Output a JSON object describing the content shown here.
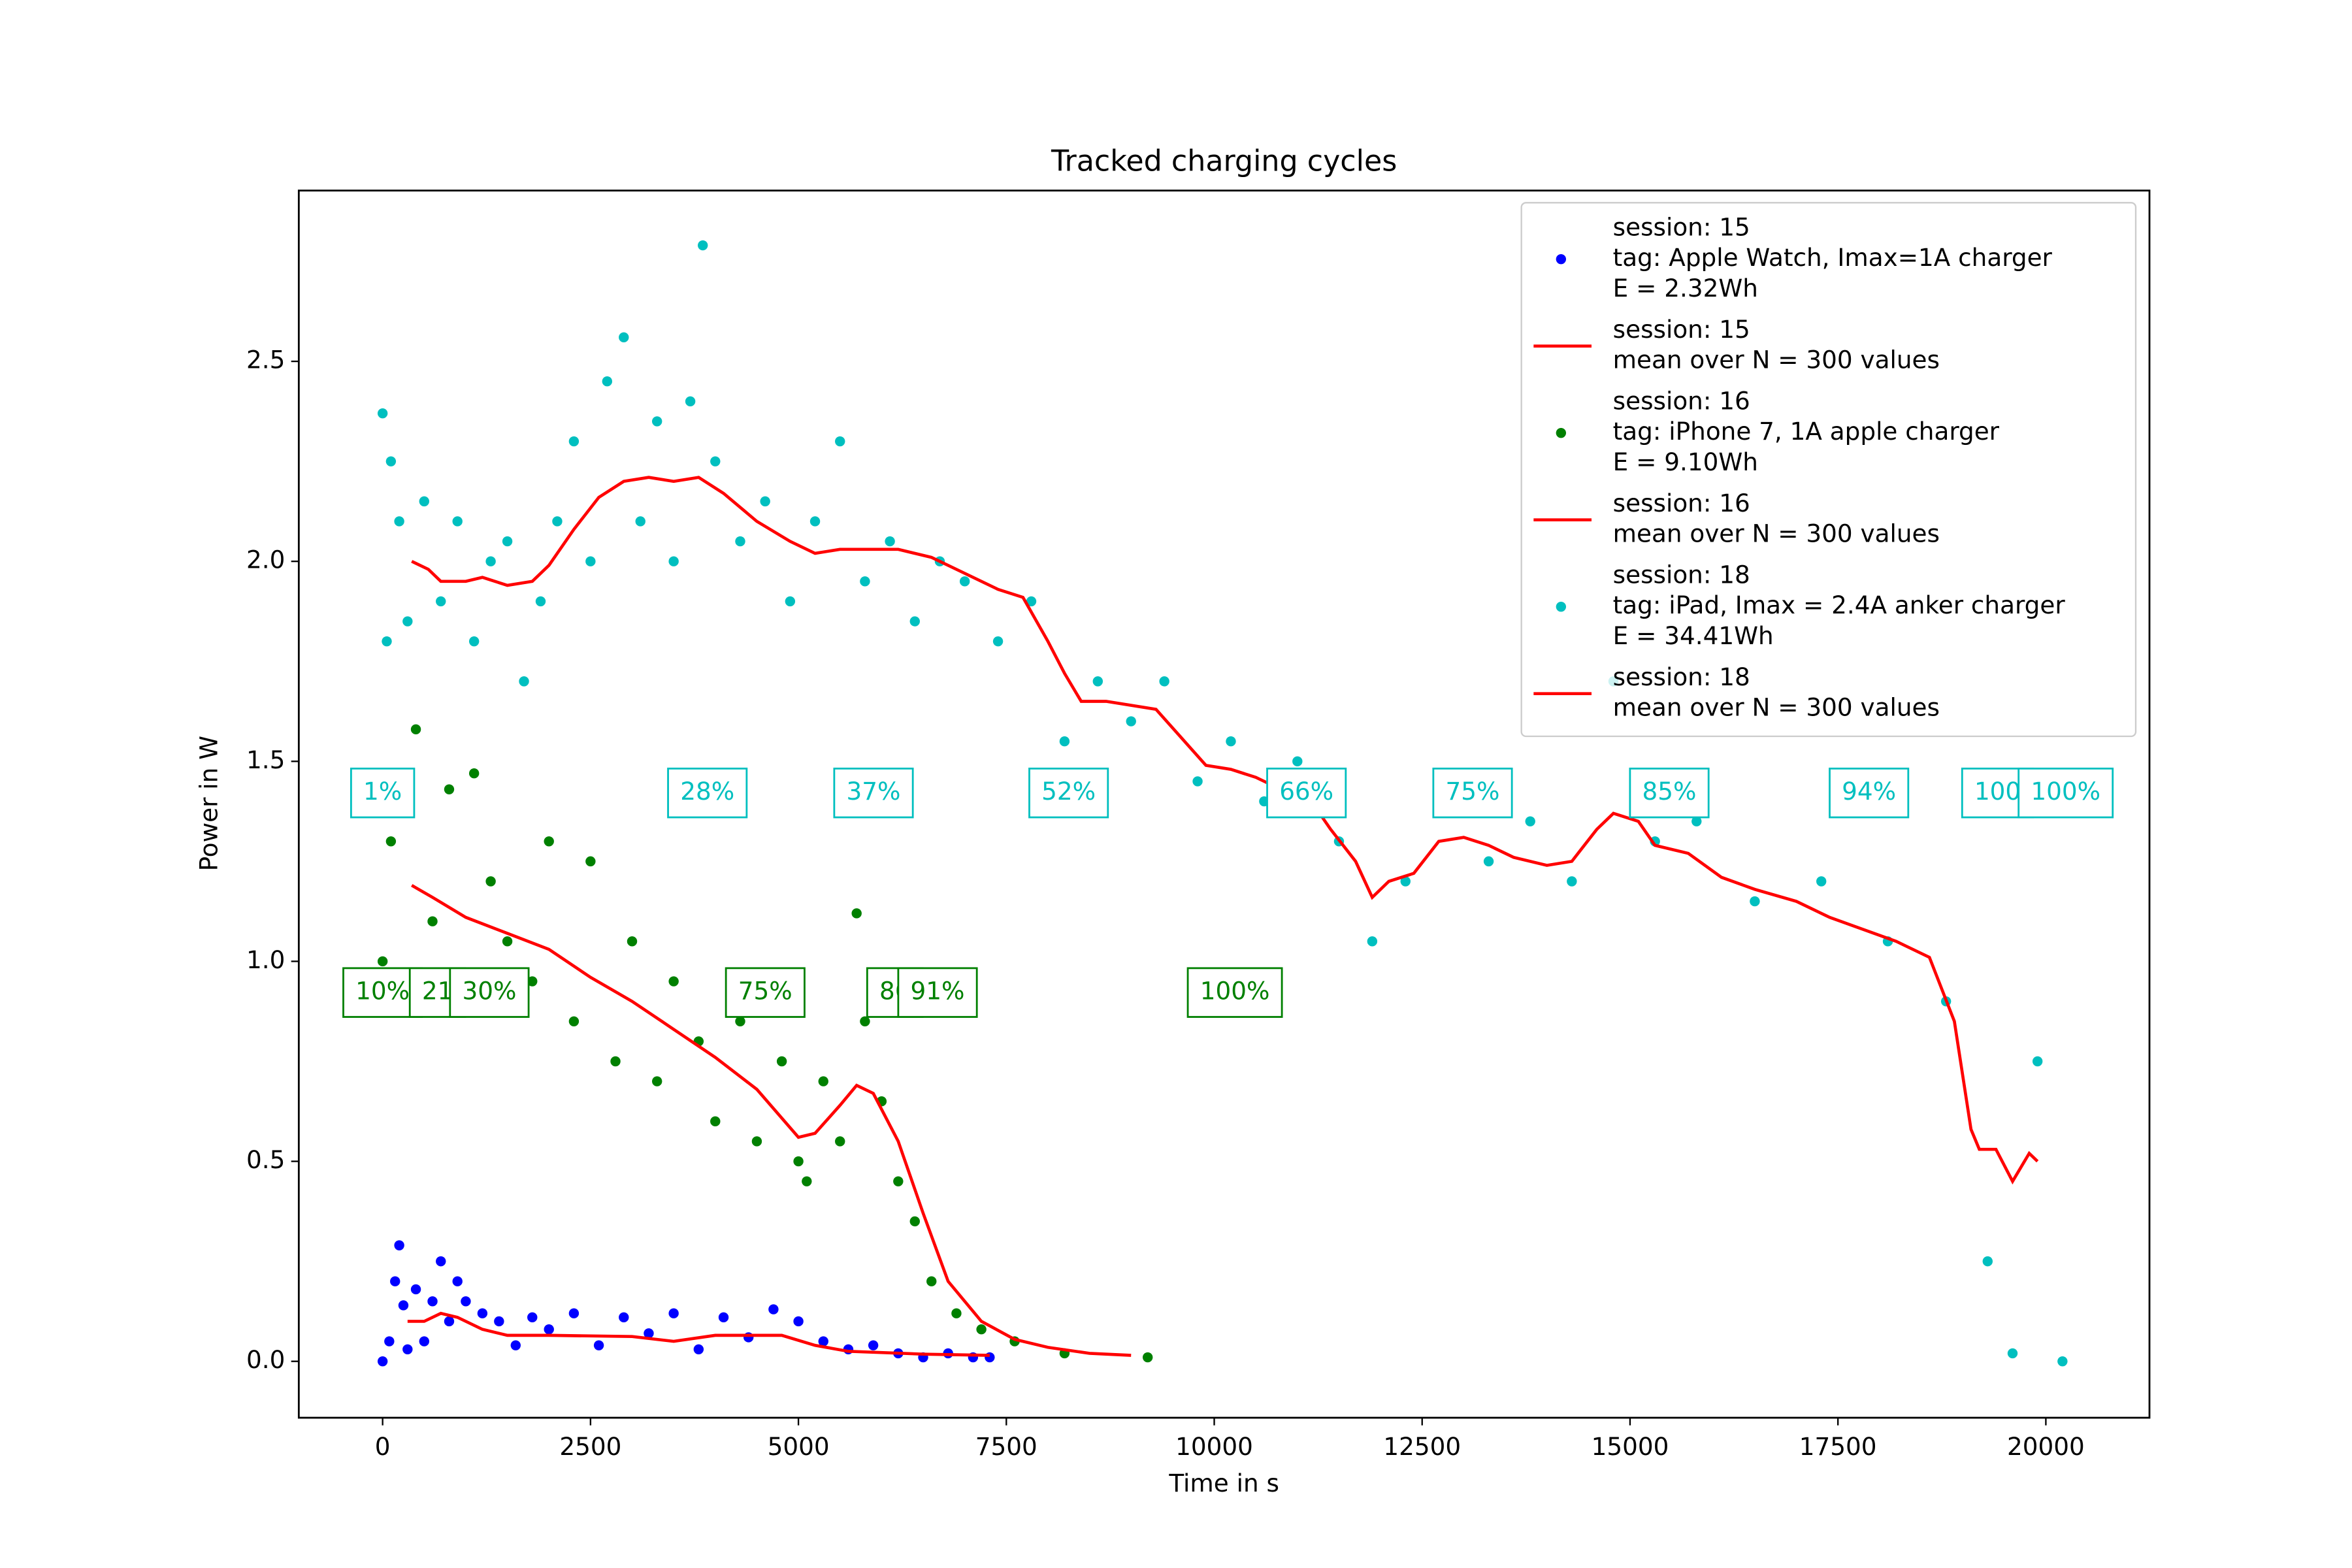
{
  "chart_data": {
    "type": "scatter",
    "title": "Tracked charging cycles",
    "xlabel": "Time in s",
    "ylabel": "Power in W",
    "xlim": [
      -1008,
      21246
    ],
    "ylim": [
      -0.141,
      2.927
    ],
    "xticks": [
      0,
      2500,
      5000,
      7500,
      10000,
      12500,
      15000,
      17500,
      20000
    ],
    "yticks": [
      {
        "value": 0,
        "label": "0.0"
      },
      0.5,
      {
        "value": 1,
        "label": "1.0"
      },
      1.5,
      {
        "value": 2,
        "label": "2.0"
      },
      2.5
    ],
    "legend": "upper right",
    "series": [
      {
        "name": [
          "session: 15",
          "tag: Apple Watch, Imax=1A charger",
          "E = 2.32Wh"
        ],
        "mode": "markers",
        "color": "#0000ff",
        "x": [
          0,
          80,
          150,
          200,
          250,
          300,
          400,
          500,
          600,
          700,
          800,
          900,
          1000,
          1200,
          1400,
          1600,
          1800,
          2000,
          2300,
          2600,
          2900,
          3200,
          3500,
          3800,
          4100,
          4400,
          4700,
          5000,
          5300,
          5600,
          5900,
          6200,
          6500,
          6800,
          7100,
          7300
        ],
        "y": [
          0.0,
          0.05,
          0.2,
          0.29,
          0.14,
          0.03,
          0.18,
          0.05,
          0.15,
          0.25,
          0.1,
          0.2,
          0.15,
          0.12,
          0.1,
          0.04,
          0.11,
          0.08,
          0.12,
          0.04,
          0.11,
          0.07,
          0.12,
          0.03,
          0.11,
          0.06,
          0.13,
          0.1,
          0.05,
          0.03,
          0.04,
          0.02,
          0.01,
          0.02,
          0.01,
          0.01
        ]
      },
      {
        "name": [
          "session: 15",
          "mean over N = 300 values"
        ],
        "mode": "lines",
        "color": "#ff0000",
        "x": [
          300,
          500,
          700,
          900,
          1200,
          1500,
          2000,
          3000,
          3500,
          4000,
          4800,
          5200,
          5600,
          6500,
          7300
        ],
        "y": [
          0.1,
          0.1,
          0.12,
          0.11,
          0.08,
          0.065,
          0.065,
          0.062,
          0.05,
          0.065,
          0.065,
          0.04,
          0.025,
          0.018,
          0.015
        ]
      },
      {
        "name": [
          "session: 16",
          "tag: iPhone 7, 1A apple charger",
          "E = 9.10Wh"
        ],
        "mode": "markers",
        "color": "#008000",
        "x": [
          0,
          100,
          200,
          300,
          400,
          500,
          600,
          800,
          1000,
          1100,
          1300,
          1500,
          1800,
          2000,
          2300,
          2500,
          2800,
          3000,
          3300,
          3500,
          3800,
          4000,
          4300,
          4500,
          4800,
          5000,
          5100,
          5300,
          5500,
          5700,
          5800,
          6000,
          6200,
          6400,
          6600,
          6900,
          7200,
          7600,
          8200,
          9200
        ],
        "y": [
          1.0,
          1.3,
          1.45,
          1.4,
          1.58,
          0.88,
          1.1,
          1.43,
          0.9,
          1.47,
          1.2,
          1.05,
          0.95,
          1.3,
          0.85,
          1.25,
          0.75,
          1.05,
          0.7,
          0.95,
          0.8,
          0.6,
          0.85,
          0.55,
          0.75,
          0.5,
          0.45,
          0.7,
          0.55,
          1.12,
          0.85,
          0.65,
          0.45,
          0.35,
          0.2,
          0.12,
          0.08,
          0.05,
          0.02,
          0.01
        ],
        "annotations": [
          {
            "x": 0,
            "y": 0.922,
            "text": "10%"
          },
          {
            "x": 660,
            "y": 0.922,
            "text": "21"
          },
          {
            "x": 1283,
            "y": 0.922,
            "text": "30%"
          },
          {
            "x": 4601,
            "y": 0.922,
            "text": "75%"
          },
          {
            "x": 6160,
            "y": 0.922,
            "text": "86"
          },
          {
            "x": 6673,
            "y": 0.922,
            "text": "91%"
          },
          {
            "x": 10248,
            "y": 0.922,
            "text": "100%"
          }
        ]
      },
      {
        "name": [
          "session: 16",
          "mean over N = 300 values"
        ],
        "mode": "lines",
        "color": "#ff0000",
        "x": [
          350,
          600,
          1000,
          1500,
          2000,
          2500,
          3000,
          3500,
          4000,
          4500,
          5000,
          5200,
          5500,
          5700,
          5900,
          6200,
          6500,
          6800,
          7200,
          7600,
          8000,
          8500,
          9000
        ],
        "y": [
          1.19,
          1.16,
          1.11,
          1.07,
          1.03,
          0.96,
          0.9,
          0.83,
          0.76,
          0.68,
          0.56,
          0.57,
          0.64,
          0.69,
          0.67,
          0.55,
          0.37,
          0.2,
          0.1,
          0.055,
          0.035,
          0.02,
          0.015
        ]
      },
      {
        "name": [
          "session: 18",
          "tag: iPad, Imax = 2.4A anker charger",
          "E = 34.41Wh"
        ],
        "mode": "markers",
        "color": "#00bfbf",
        "x": [
          0,
          50,
          100,
          200,
          300,
          500,
          700,
          900,
          1100,
          1300,
          1500,
          1700,
          1900,
          2100,
          2300,
          2500,
          2700,
          2900,
          3100,
          3300,
          3500,
          3700,
          3850,
          4000,
          4300,
          4600,
          4900,
          5200,
          5500,
          5800,
          6100,
          6400,
          6700,
          7000,
          7400,
          7800,
          8200,
          8600,
          9000,
          9400,
          9800,
          10200,
          10600,
          11000,
          11500,
          11900,
          12300,
          12800,
          13300,
          13800,
          14300,
          14800,
          15300,
          15800,
          16500,
          17300,
          18100,
          18800,
          19300,
          19600,
          19900,
          20200
        ],
        "y": [
          2.37,
          1.8,
          2.25,
          2.1,
          1.85,
          2.15,
          1.9,
          2.1,
          1.8,
          2.0,
          2.05,
          1.7,
          1.9,
          2.1,
          2.3,
          2.0,
          2.45,
          2.56,
          2.1,
          2.35,
          2.0,
          2.4,
          2.79,
          2.25,
          2.05,
          2.15,
          1.9,
          2.1,
          2.3,
          1.95,
          2.05,
          1.85,
          2.0,
          1.95,
          1.8,
          1.9,
          1.55,
          1.7,
          1.6,
          1.7,
          1.45,
          1.55,
          1.4,
          1.5,
          1.3,
          1.05,
          1.2,
          1.4,
          1.25,
          1.35,
          1.2,
          1.7,
          1.3,
          1.35,
          1.15,
          1.2,
          1.05,
          0.9,
          0.25,
          0.02,
          0.75,
          0.0
        ],
        "annotations": [
          {
            "x": 0,
            "y": 1.421,
            "text": "1%"
          },
          {
            "x": 3905,
            "y": 1.421,
            "text": "28%"
          },
          {
            "x": 5903,
            "y": 1.421,
            "text": "37%"
          },
          {
            "x": 8249,
            "y": 1.421,
            "text": "52%"
          },
          {
            "x": 11109,
            "y": 1.421,
            "text": "66%"
          },
          {
            "x": 13107,
            "y": 1.421,
            "text": "75%"
          },
          {
            "x": 15472,
            "y": 1.421,
            "text": "85%"
          },
          {
            "x": 17873,
            "y": 1.421,
            "text": "94%"
          },
          {
            "x": 19420,
            "y": 1.421,
            "text": "100"
          },
          {
            "x": 20238,
            "y": 1.421,
            "text": "100%"
          }
        ]
      },
      {
        "name": [
          "session: 18",
          "mean over N = 300 values"
        ],
        "mode": "lines",
        "color": "#ff0000",
        "x": [
          350,
          550,
          700,
          1000,
          1200,
          1500,
          1800,
          2000,
          2300,
          2600,
          2900,
          3200,
          3500,
          3800,
          4100,
          4500,
          4900,
          5200,
          5500,
          5800,
          6200,
          6600,
          7000,
          7400,
          7700,
          8000,
          8200,
          8400,
          8700,
          9000,
          9300,
          9600,
          9900,
          10200,
          10500,
          10800,
          11100,
          11400,
          11700,
          11900,
          12100,
          12400,
          12700,
          13000,
          13300,
          13600,
          14000,
          14300,
          14600,
          14800,
          15100,
          15300,
          15700,
          16100,
          16500,
          17000,
          17400,
          17800,
          18200,
          18600,
          18900,
          19100,
          19200,
          19400,
          19600,
          19800,
          19900
        ],
        "y": [
          2.0,
          1.98,
          1.95,
          1.95,
          1.96,
          1.94,
          1.95,
          1.99,
          2.08,
          2.16,
          2.2,
          2.21,
          2.2,
          2.21,
          2.17,
          2.1,
          2.05,
          2.02,
          2.03,
          2.03,
          2.03,
          2.01,
          1.97,
          1.93,
          1.91,
          1.8,
          1.72,
          1.65,
          1.65,
          1.64,
          1.63,
          1.56,
          1.49,
          1.48,
          1.46,
          1.43,
          1.42,
          1.33,
          1.25,
          1.16,
          1.2,
          1.22,
          1.3,
          1.31,
          1.29,
          1.26,
          1.24,
          1.25,
          1.33,
          1.37,
          1.35,
          1.29,
          1.27,
          1.21,
          1.18,
          1.15,
          1.11,
          1.08,
          1.05,
          1.01,
          0.85,
          0.58,
          0.53,
          0.53,
          0.45,
          0.52,
          0.5
        ]
      }
    ]
  }
}
